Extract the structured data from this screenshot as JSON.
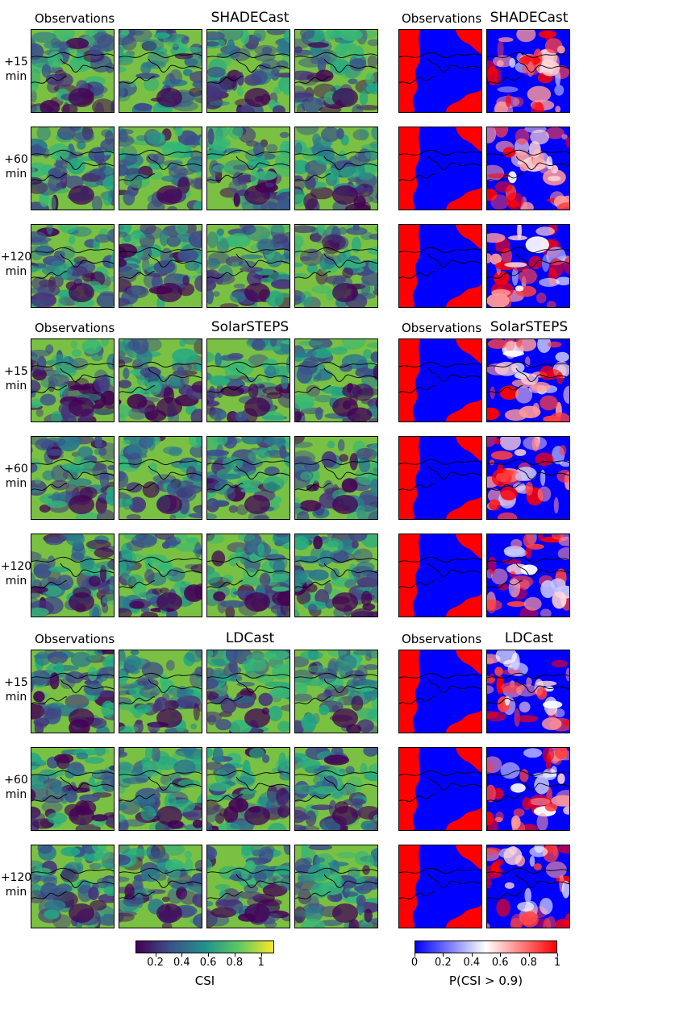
{
  "blocks": [
    {
      "observations_label": "Observations",
      "model": "SHADECast",
      "observations_label_right": "Observations",
      "model_right": "SHADECast"
    },
    {
      "observations_label": "Observations",
      "model": "SolarSTEPS",
      "observations_label_right": "Observations",
      "model_right": "SolarSTEPS"
    },
    {
      "observations_label": "Observations",
      "model": "LDCast",
      "observations_label_right": "Observations",
      "model_right": "LDCast"
    }
  ],
  "lead_times": [
    {
      "value": "+15",
      "unit": "min"
    },
    {
      "value": "+60",
      "unit": "min"
    },
    {
      "value": "+120",
      "unit": "min"
    }
  ],
  "colorbars": {
    "csi": {
      "label": "CSI",
      "ticks": [
        "0.2",
        "0.4",
        "0.6",
        "0.8",
        "1"
      ],
      "tick_values": [
        0.2,
        0.4,
        0.6,
        0.8,
        1.0
      ],
      "range": [
        0.05,
        1.1
      ],
      "colormap": "viridis"
    },
    "prob": {
      "label": "P(CSI > 0.9)",
      "ticks": [
        "0",
        "0.2",
        "0.4",
        "0.6",
        "0.8",
        "1"
      ],
      "tick_values": [
        0,
        0.2,
        0.4,
        0.6,
        0.8,
        1.0
      ],
      "range": [
        0,
        1
      ],
      "colormap": "bwr"
    }
  },
  "colors": {
    "viridis_low": "#440154",
    "viridis_mid": "#21918c",
    "viridis_high": "#fde725",
    "prob_low": "#0000ff",
    "prob_mid": "#ffffff",
    "prob_high": "#ff0000",
    "borders": "#000000"
  }
}
